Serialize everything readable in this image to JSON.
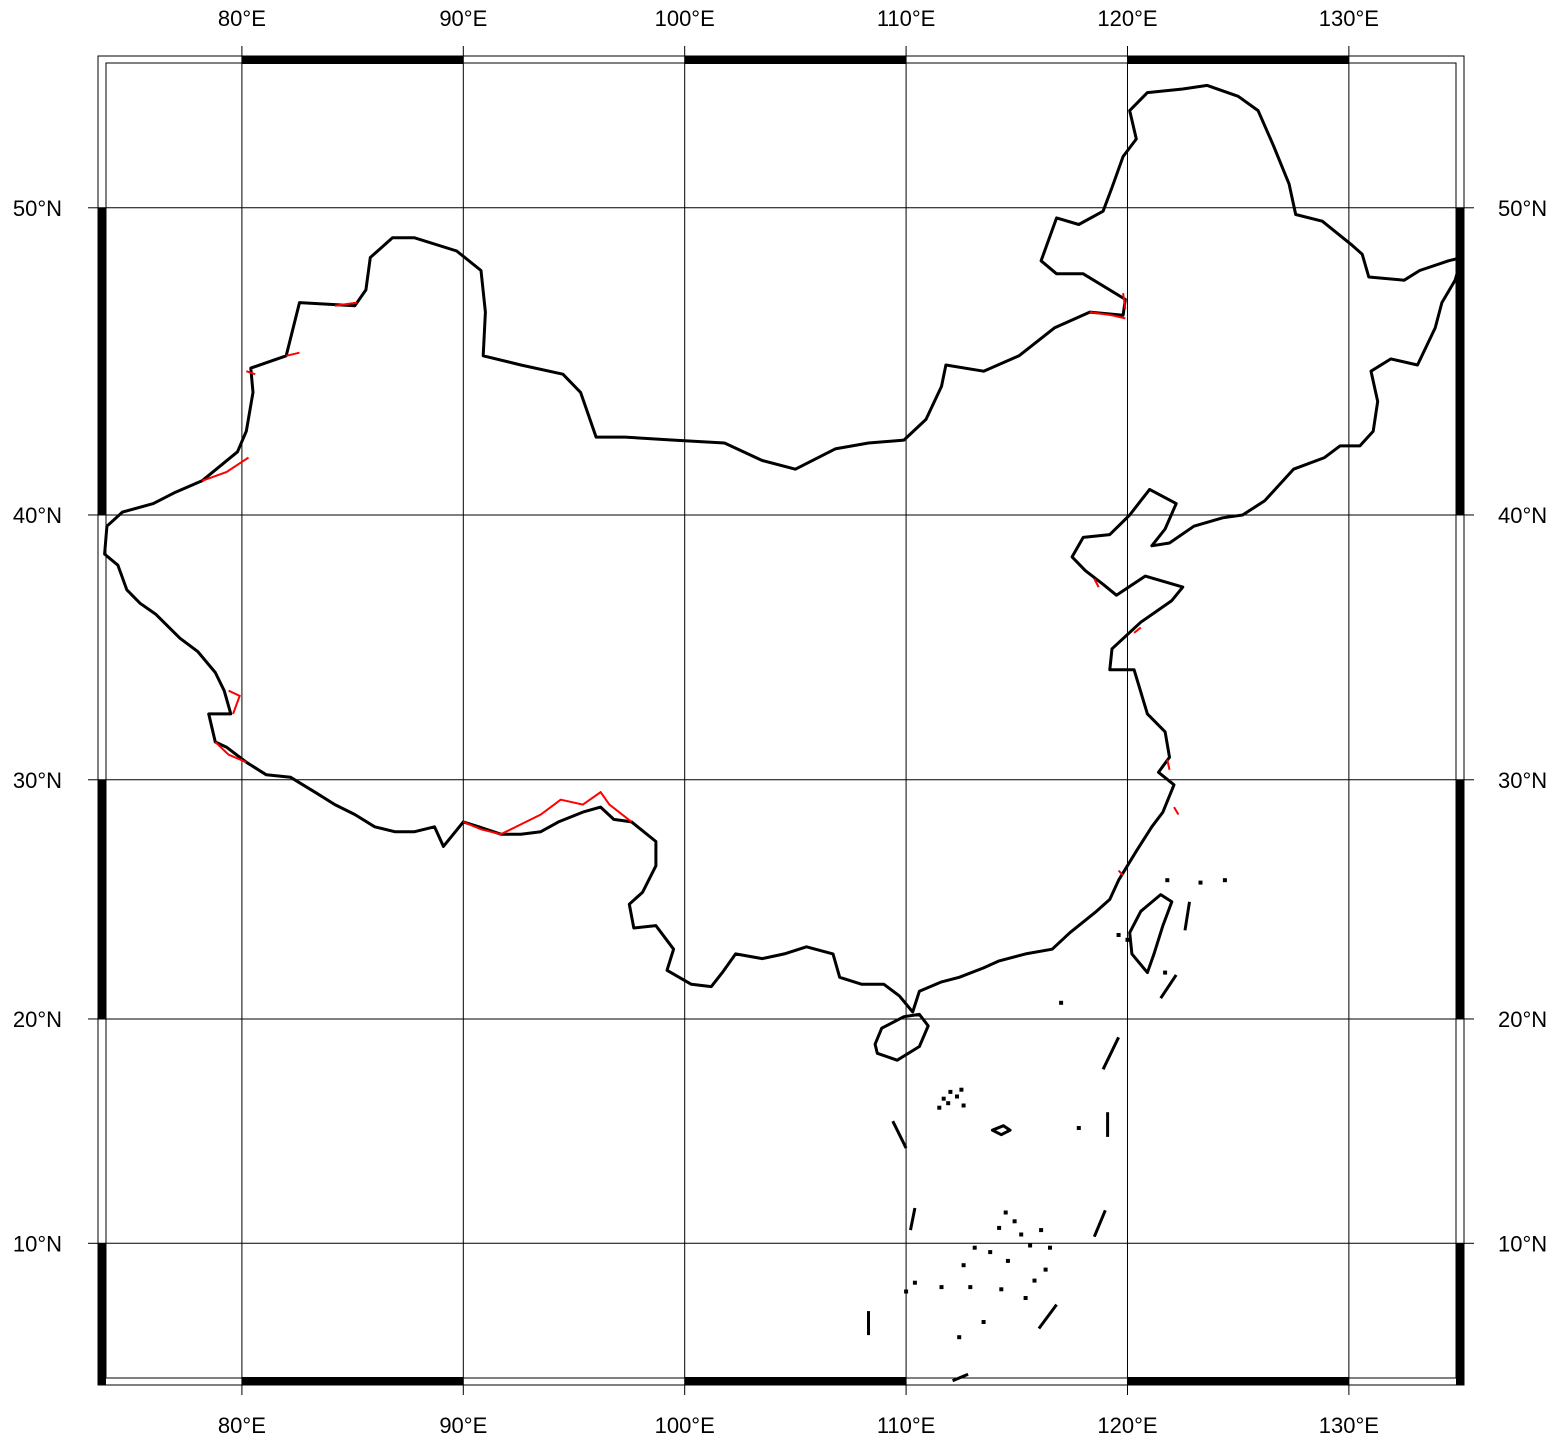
{
  "map": {
    "projection": "Mercator",
    "extent": {
      "lon_min": 73.5,
      "lon_max": 135.2,
      "lat_min": 3.5,
      "lat_max": 54.3
    },
    "grid": {
      "lon_step": 10,
      "lat_step": 10
    },
    "colors": {
      "frame": "#000000",
      "border": "#000000",
      "disputed": "#ff0000",
      "background": "#ffffff"
    },
    "lon_ticks": [
      {
        "value": 80,
        "label": "80°E"
      },
      {
        "value": 90,
        "label": "90°E"
      },
      {
        "value": 100,
        "label": "100°E"
      },
      {
        "value": 110,
        "label": "110°E"
      },
      {
        "value": 120,
        "label": "120°E"
      },
      {
        "value": 130,
        "label": "130°E"
      }
    ],
    "lat_ticks": [
      {
        "value": 10,
        "label": "10°N"
      },
      {
        "value": 20,
        "label": "20°N"
      },
      {
        "value": 30,
        "label": "30°N"
      },
      {
        "value": 40,
        "label": "40°N"
      },
      {
        "value": 50,
        "label": "50°N"
      }
    ],
    "boundary": [
      [
        73.9,
        39.6
      ],
      [
        74.6,
        40.1
      ],
      [
        76.0,
        40.4
      ],
      [
        77.0,
        40.8
      ],
      [
        78.2,
        41.2
      ],
      [
        79.8,
        42.2
      ],
      [
        80.2,
        42.9
      ],
      [
        80.5,
        44.2
      ],
      [
        80.4,
        45.0
      ],
      [
        82.0,
        45.4
      ],
      [
        82.6,
        47.1
      ],
      [
        85.1,
        47.0
      ],
      [
        85.6,
        47.5
      ],
      [
        85.8,
        48.5
      ],
      [
        86.8,
        49.1
      ],
      [
        87.8,
        49.1
      ],
      [
        89.7,
        48.7
      ],
      [
        90.8,
        48.1
      ],
      [
        91.0,
        46.8
      ],
      [
        90.9,
        45.4
      ],
      [
        92.6,
        45.1
      ],
      [
        94.5,
        44.8
      ],
      [
        95.3,
        44.2
      ],
      [
        96.0,
        42.7
      ],
      [
        97.3,
        42.7
      ],
      [
        99.5,
        42.6
      ],
      [
        101.8,
        42.5
      ],
      [
        103.5,
        41.9
      ],
      [
        105.0,
        41.6
      ],
      [
        106.8,
        42.3
      ],
      [
        108.3,
        42.5
      ],
      [
        109.9,
        42.6
      ],
      [
        110.9,
        43.3
      ],
      [
        111.6,
        44.4
      ],
      [
        111.8,
        45.1
      ],
      [
        113.5,
        44.9
      ],
      [
        115.1,
        45.4
      ],
      [
        116.7,
        46.3
      ],
      [
        118.3,
        46.8
      ],
      [
        119.8,
        46.7
      ],
      [
        119.9,
        47.2
      ],
      [
        118.0,
        48.0
      ],
      [
        116.8,
        48.0
      ],
      [
        116.1,
        48.4
      ],
      [
        116.8,
        49.7
      ],
      [
        117.8,
        49.5
      ],
      [
        118.9,
        49.9
      ],
      [
        119.3,
        50.6
      ],
      [
        119.8,
        51.5
      ],
      [
        120.4,
        52.0
      ],
      [
        120.1,
        52.8
      ],
      [
        120.9,
        53.3
      ],
      [
        122.5,
        53.4
      ],
      [
        123.6,
        53.5
      ],
      [
        125.0,
        53.2
      ],
      [
        125.9,
        52.8
      ],
      [
        126.6,
        51.8
      ],
      [
        127.3,
        50.7
      ],
      [
        127.6,
        49.8
      ],
      [
        128.8,
        49.6
      ],
      [
        130.1,
        48.9
      ],
      [
        130.6,
        48.6
      ],
      [
        130.9,
        47.9
      ],
      [
        132.5,
        47.8
      ],
      [
        133.2,
        48.1
      ],
      [
        134.5,
        48.4
      ],
      [
        135.1,
        48.5
      ],
      [
        134.8,
        47.8
      ],
      [
        134.2,
        47.1
      ],
      [
        133.9,
        46.3
      ],
      [
        133.1,
        45.1
      ],
      [
        131.9,
        45.3
      ],
      [
        131.0,
        44.9
      ],
      [
        131.3,
        43.9
      ],
      [
        131.1,
        42.9
      ],
      [
        130.5,
        42.4
      ],
      [
        129.6,
        42.4
      ],
      [
        128.9,
        42.0
      ],
      [
        127.5,
        41.6
      ],
      [
        126.2,
        40.5
      ],
      [
        125.2,
        40.0
      ],
      [
        124.3,
        39.9
      ],
      [
        123.0,
        39.6
      ],
      [
        121.9,
        39.0
      ],
      [
        121.1,
        38.9
      ],
      [
        121.7,
        39.5
      ],
      [
        122.2,
        40.4
      ],
      [
        121.0,
        40.9
      ],
      [
        120.1,
        40.0
      ],
      [
        119.2,
        39.3
      ],
      [
        118.0,
        39.2
      ],
      [
        117.5,
        38.5
      ],
      [
        118.1,
        38.0
      ],
      [
        118.9,
        37.5
      ],
      [
        119.5,
        37.1
      ],
      [
        120.8,
        37.8
      ],
      [
        122.5,
        37.4
      ],
      [
        122.0,
        36.9
      ],
      [
        120.6,
        36.1
      ],
      [
        119.3,
        35.1
      ],
      [
        119.2,
        34.3
      ],
      [
        120.3,
        34.3
      ],
      [
        120.9,
        32.6
      ],
      [
        121.7,
        31.9
      ],
      [
        121.9,
        30.9
      ],
      [
        121.4,
        30.3
      ],
      [
        122.1,
        29.8
      ],
      [
        121.6,
        28.7
      ],
      [
        121.1,
        28.1
      ],
      [
        120.4,
        27.1
      ],
      [
        119.6,
        25.9
      ],
      [
        119.2,
        25.1
      ],
      [
        118.6,
        24.6
      ],
      [
        117.4,
        23.7
      ],
      [
        116.6,
        23.0
      ],
      [
        115.4,
        22.8
      ],
      [
        114.2,
        22.5
      ],
      [
        113.5,
        22.2
      ],
      [
        112.4,
        21.8
      ],
      [
        111.6,
        21.6
      ],
      [
        110.6,
        21.2
      ],
      [
        110.3,
        20.3
      ],
      [
        109.7,
        21.0
      ],
      [
        109.0,
        21.5
      ],
      [
        108.0,
        21.5
      ],
      [
        107.0,
        21.8
      ],
      [
        106.7,
        22.8
      ],
      [
        105.5,
        23.1
      ],
      [
        104.5,
        22.8
      ],
      [
        103.5,
        22.6
      ],
      [
        102.3,
        22.8
      ],
      [
        101.7,
        22.0
      ],
      [
        101.2,
        21.4
      ],
      [
        100.3,
        21.5
      ],
      [
        99.2,
        22.1
      ],
      [
        99.5,
        23.0
      ],
      [
        98.7,
        24.0
      ],
      [
        97.7,
        23.9
      ],
      [
        97.5,
        24.9
      ],
      [
        98.1,
        25.4
      ],
      [
        98.7,
        26.5
      ],
      [
        98.7,
        27.5
      ],
      [
        97.6,
        28.3
      ],
      [
        96.8,
        28.4
      ],
      [
        96.2,
        28.9
      ],
      [
        95.4,
        28.7
      ],
      [
        94.3,
        28.3
      ],
      [
        93.5,
        27.9
      ],
      [
        92.6,
        27.8
      ],
      [
        91.7,
        27.8
      ],
      [
        90.7,
        28.1
      ],
      [
        90.0,
        28.3
      ],
      [
        89.1,
        27.3
      ],
      [
        88.7,
        28.1
      ],
      [
        87.8,
        27.9
      ],
      [
        86.9,
        27.9
      ],
      [
        86.0,
        28.1
      ],
      [
        85.1,
        28.6
      ],
      [
        84.2,
        29.0
      ],
      [
        83.3,
        29.5
      ],
      [
        82.2,
        30.1
      ],
      [
        81.1,
        30.2
      ],
      [
        80.2,
        30.7
      ],
      [
        79.3,
        31.3
      ],
      [
        78.8,
        31.5
      ],
      [
        78.5,
        32.6
      ],
      [
        79.5,
        32.6
      ],
      [
        79.2,
        33.5
      ],
      [
        78.8,
        34.2
      ],
      [
        78.0,
        35.0
      ],
      [
        77.2,
        35.5
      ],
      [
        76.1,
        36.4
      ],
      [
        75.4,
        36.8
      ],
      [
        74.8,
        37.3
      ],
      [
        74.4,
        38.2
      ],
      [
        73.8,
        38.6
      ],
      [
        73.9,
        39.6
      ]
    ],
    "disputed_segments": [
      [
        [
          78.2,
          41.2
        ],
        [
          79.3,
          41.5
        ],
        [
          80.3,
          42.0
        ]
      ],
      [
        [
          80.2,
          44.9
        ],
        [
          80.6,
          44.8
        ]
      ],
      [
        [
          82.0,
          45.4
        ],
        [
          82.6,
          45.5
        ]
      ],
      [
        [
          84.2,
          47.0
        ],
        [
          85.2,
          47.1
        ]
      ],
      [
        [
          79.6,
          32.6
        ],
        [
          79.9,
          33.3
        ],
        [
          79.4,
          33.5
        ]
      ],
      [
        [
          78.8,
          31.5
        ],
        [
          79.4,
          31.0
        ],
        [
          80.2,
          30.7
        ]
      ],
      [
        [
          90.0,
          28.3
        ],
        [
          90.8,
          28.0
        ],
        [
          91.7,
          27.8
        ],
        [
          92.6,
          28.2
        ],
        [
          93.5,
          28.6
        ],
        [
          94.4,
          29.2
        ],
        [
          95.4,
          29.0
        ],
        [
          96.2,
          29.5
        ],
        [
          96.6,
          29.0
        ],
        [
          97.6,
          28.3
        ]
      ],
      [
        [
          118.3,
          46.8
        ],
        [
          119.3,
          46.7
        ],
        [
          119.9,
          46.6
        ]
      ],
      [
        [
          119.9,
          46.9
        ],
        [
          119.8,
          47.4
        ]
      ],
      [
        [
          118.5,
          37.7
        ],
        [
          118.7,
          37.4
        ]
      ],
      [
        [
          120.3,
          35.7
        ],
        [
          120.6,
          35.9
        ]
      ],
      [
        [
          121.8,
          30.8
        ],
        [
          121.9,
          30.4
        ]
      ],
      [
        [
          122.1,
          28.9
        ],
        [
          122.3,
          28.6
        ]
      ],
      [
        [
          119.6,
          26.3
        ],
        [
          119.8,
          26.1
        ]
      ]
    ],
    "islands": [
      [
        [
          108.7,
          18.5
        ],
        [
          109.6,
          18.2
        ],
        [
          110.6,
          18.8
        ],
        [
          111.0,
          19.7
        ],
        [
          110.6,
          20.2
        ],
        [
          109.9,
          20.1
        ],
        [
          108.9,
          19.6
        ],
        [
          108.6,
          18.9
        ],
        [
          108.7,
          18.5
        ]
      ],
      [
        [
          120.9,
          22.0
        ],
        [
          120.2,
          22.8
        ],
        [
          120.1,
          23.7
        ],
        [
          120.6,
          24.6
        ],
        [
          121.5,
          25.3
        ],
        [
          122.0,
          25.0
        ],
        [
          121.6,
          24.0
        ],
        [
          121.2,
          22.8
        ],
        [
          120.9,
          22.0
        ]
      ],
      [
        [
          113.9,
          15.1
        ],
        [
          114.4,
          15.3
        ],
        [
          114.7,
          15.1
        ],
        [
          114.3,
          14.9
        ],
        [
          113.9,
          15.1
        ]
      ]
    ],
    "dashes": [
      [
        [
          108.3,
          6.9
        ],
        [
          108.3,
          5.8
        ]
      ],
      [
        [
          109.4,
          15.5
        ],
        [
          110.0,
          14.3
        ]
      ],
      [
        [
          110.4,
          11.6
        ],
        [
          110.2,
          10.6
        ]
      ],
      [
        [
          112.1,
          3.7
        ],
        [
          112.8,
          4.0
        ]
      ],
      [
        [
          116.0,
          6.1
        ],
        [
          116.8,
          7.2
        ]
      ],
      [
        [
          119.0,
          11.5
        ],
        [
          118.5,
          10.3
        ]
      ],
      [
        [
          119.1,
          15.9
        ],
        [
          119.1,
          14.8
        ]
      ],
      [
        [
          119.6,
          19.2
        ],
        [
          118.9,
          17.8
        ]
      ],
      [
        [
          121.5,
          20.9
        ],
        [
          122.2,
          21.9
        ]
      ],
      [
        [
          122.6,
          23.8
        ],
        [
          122.8,
          25.0
        ]
      ]
    ],
    "island_clusters": [
      [
        111.7,
        16.5
      ],
      [
        112.0,
        16.8
      ],
      [
        111.9,
        16.3
      ],
      [
        112.3,
        16.6
      ],
      [
        112.6,
        16.2
      ],
      [
        112.5,
        16.9
      ],
      [
        111.5,
        16.1
      ],
      [
        117.0,
        20.7
      ],
      [
        117.8,
        15.2
      ],
      [
        114.5,
        11.4
      ],
      [
        114.9,
        11.0
      ],
      [
        115.2,
        10.4
      ],
      [
        114.2,
        10.7
      ],
      [
        113.8,
        9.6
      ],
      [
        114.6,
        9.2
      ],
      [
        115.6,
        9.9
      ],
      [
        116.1,
        10.6
      ],
      [
        116.5,
        9.8
      ],
      [
        116.3,
        8.8
      ],
      [
        115.8,
        8.3
      ],
      [
        113.1,
        9.8
      ],
      [
        112.6,
        9.0
      ],
      [
        112.9,
        8.0
      ],
      [
        114.3,
        7.9
      ],
      [
        115.4,
        7.5
      ],
      [
        113.5,
        6.4
      ],
      [
        112.4,
        5.7
      ],
      [
        110.4,
        8.2
      ],
      [
        110.0,
        7.8
      ],
      [
        111.6,
        8.0
      ],
      [
        121.8,
        25.9
      ],
      [
        123.3,
        25.8
      ],
      [
        124.4,
        25.9
      ],
      [
        120.0,
        23.4
      ],
      [
        119.6,
        23.6
      ],
      [
        121.7,
        22.0
      ]
    ]
  }
}
